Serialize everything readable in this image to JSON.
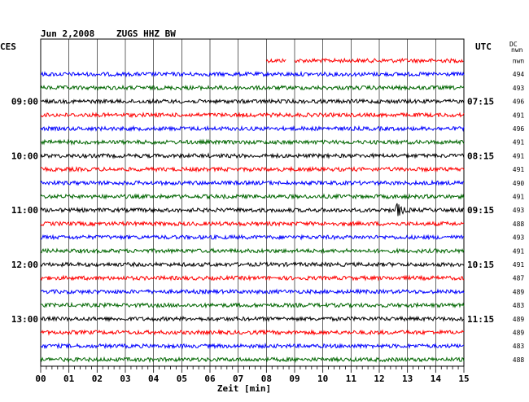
{
  "header": {
    "date": "Jun 2,2008",
    "station": "ZUGS HHZ BW",
    "left_tz": "CES",
    "right_tz": "UTC",
    "dc_label": "DC",
    "dc_sub": "nwn"
  },
  "chart_data": {
    "type": "line",
    "title": "Jun 2,2008   ZUGS HHZ BW",
    "xlabel": "Zeit [min]",
    "xlim": [
      0,
      15
    ],
    "x_ticks": [
      "00",
      "01",
      "02",
      "03",
      "04",
      "05",
      "06",
      "07",
      "08",
      "09",
      "10",
      "11",
      "12",
      "13",
      "14",
      "15"
    ],
    "left_hour_labels": [
      {
        "row": 3,
        "label": "09:00"
      },
      {
        "row": 7,
        "label": "10:00"
      },
      {
        "row": 11,
        "label": "11:00"
      },
      {
        "row": 15,
        "label": "12:00"
      },
      {
        "row": 19,
        "label": "13:00"
      }
    ],
    "right_hour_labels": [
      {
        "row": 3,
        "label": "07:15"
      },
      {
        "row": 7,
        "label": "08:15"
      },
      {
        "row": 11,
        "label": "09:15"
      },
      {
        "row": 15,
        "label": "10:15"
      },
      {
        "row": 19,
        "label": "11:15"
      }
    ],
    "traces": [
      {
        "color": "#ff0000",
        "dc": "nwn",
        "start_min": 8.0,
        "gap": [
          8.7,
          9.0
        ]
      },
      {
        "color": "#0000ff",
        "dc": "494"
      },
      {
        "color": "#006600",
        "dc": "493"
      },
      {
        "color": "#000000",
        "dc": "496"
      },
      {
        "color": "#ff0000",
        "dc": "491"
      },
      {
        "color": "#0000ff",
        "dc": "496"
      },
      {
        "color": "#006600",
        "dc": "491"
      },
      {
        "color": "#000000",
        "dc": "491"
      },
      {
        "color": "#ff0000",
        "dc": "491"
      },
      {
        "color": "#0000ff",
        "dc": "490"
      },
      {
        "color": "#006600",
        "dc": "491"
      },
      {
        "color": "#000000",
        "dc": "493",
        "event_min": 12.6
      },
      {
        "color": "#ff0000",
        "dc": "488"
      },
      {
        "color": "#0000ff",
        "dc": "493"
      },
      {
        "color": "#006600",
        "dc": "491"
      },
      {
        "color": "#000000",
        "dc": "491"
      },
      {
        "color": "#ff0000",
        "dc": "487"
      },
      {
        "color": "#0000ff",
        "dc": "489"
      },
      {
        "color": "#006600",
        "dc": "483"
      },
      {
        "color": "#000000",
        "dc": "489"
      },
      {
        "color": "#ff0000",
        "dc": "489"
      },
      {
        "color": "#0000ff",
        "dc": "483"
      },
      {
        "color": "#006600",
        "dc": "488"
      }
    ]
  }
}
